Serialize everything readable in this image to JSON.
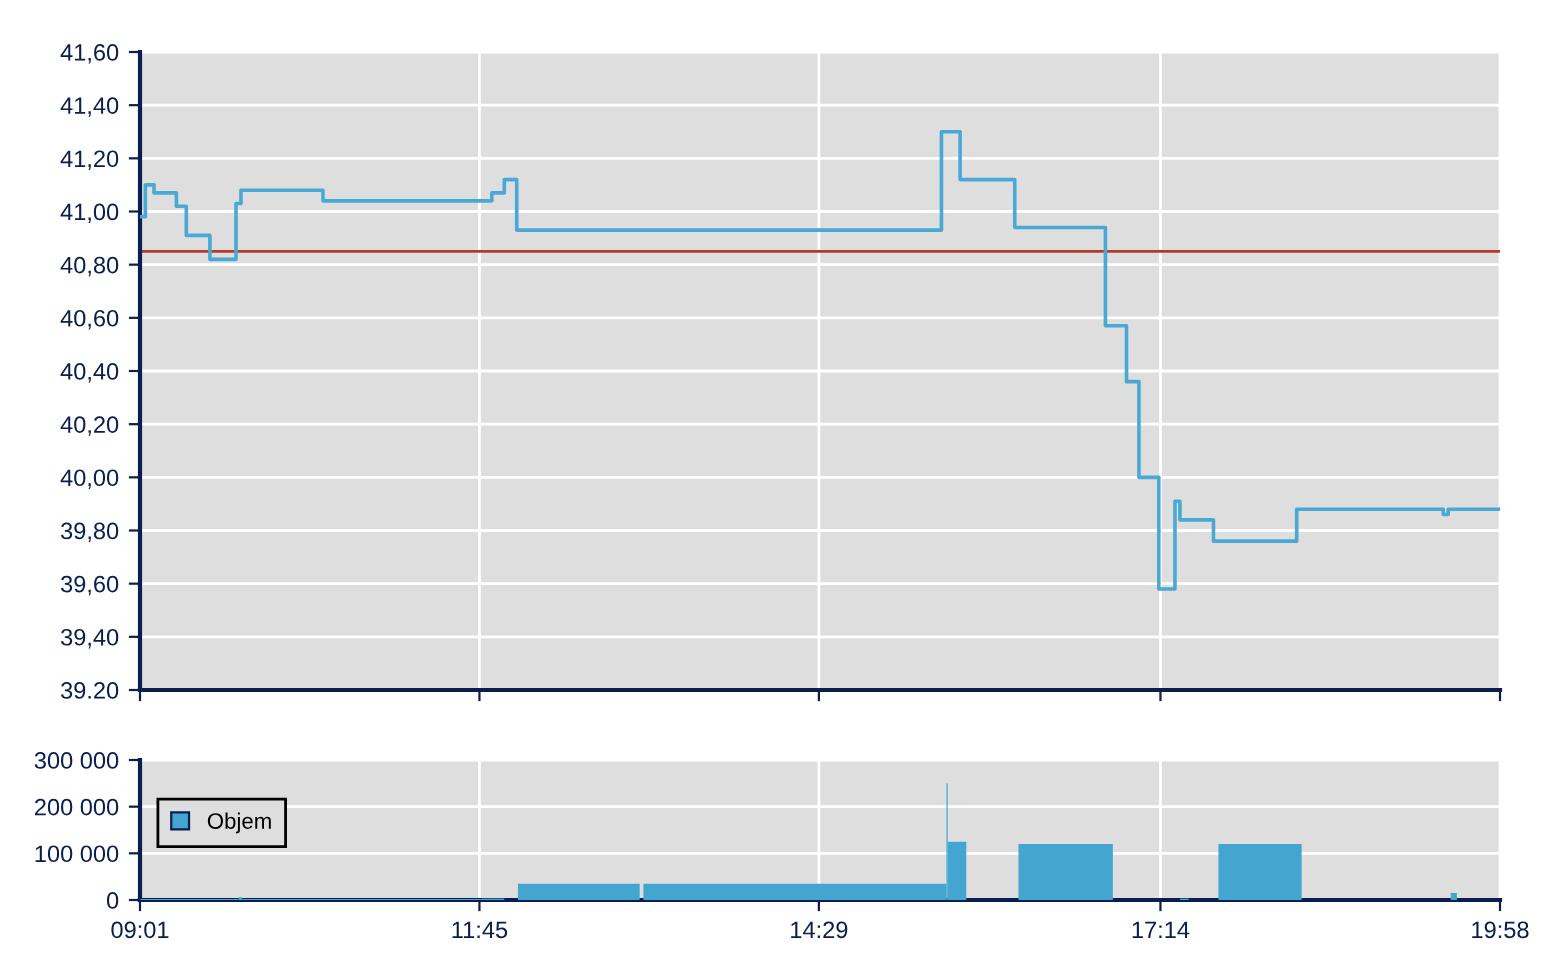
{
  "chart_data": [
    {
      "type": "step",
      "tick_labels": "y",
      "grid": true,
      "legend": false,
      "xlim": [
        9.017,
        19.967
      ],
      "xticks": [
        {
          "value": 9.017,
          "label": null
        },
        {
          "value": 11.75,
          "label": null
        },
        {
          "value": 14.483,
          "label": null
        },
        {
          "value": 17.233,
          "label": null
        },
        {
          "value": 19.967,
          "label": null
        }
      ],
      "ylim": [
        39.2,
        41.6
      ],
      "yticks": [
        {
          "value": 39.2,
          "label": "39.20"
        },
        {
          "value": 39.4,
          "label": "39,40"
        },
        {
          "value": 39.6,
          "label": "39,60"
        },
        {
          "value": 39.8,
          "label": "39,80"
        },
        {
          "value": 40.0,
          "label": "40,00"
        },
        {
          "value": 40.2,
          "label": "40,20"
        },
        {
          "value": 40.4,
          "label": "40,40"
        },
        {
          "value": 40.6,
          "label": "40,60"
        },
        {
          "value": 40.8,
          "label": "40,80"
        },
        {
          "value": 41.0,
          "label": "41,00"
        },
        {
          "value": 41.2,
          "label": "41,20"
        },
        {
          "value": 41.4,
          "label": "41,40"
        },
        {
          "value": 41.6,
          "label": "41,60"
        }
      ],
      "ref_lines": [
        {
          "axis": "y",
          "value": 40.85,
          "label": null,
          "color": "#b03a2e"
        }
      ],
      "series": [
        {
          "color": "#4aa8d4",
          "x": [
            9.03,
            9.06,
            9.13,
            9.31,
            9.39,
            9.58,
            9.79,
            9.83,
            10.49,
            11.85,
            11.95,
            12.05,
            15.47,
            15.62,
            16.06,
            16.79,
            16.96,
            17.06,
            17.22,
            17.35,
            17.39,
            17.66,
            18.33,
            19.51,
            19.55,
            19.967
          ],
          "values": [
            40.98,
            41.1,
            41.07,
            41.02,
            40.91,
            40.82,
            41.03,
            41.08,
            41.04,
            41.07,
            41.12,
            40.93,
            41.3,
            41.12,
            40.94,
            40.57,
            40.36,
            40.0,
            39.58,
            39.91,
            39.84,
            39.76,
            39.88,
            39.86,
            39.88,
            39.88
          ]
        }
      ]
    },
    {
      "type": "histogram",
      "grid": true,
      "legend": "top left",
      "xlim": [
        9.017,
        19.967
      ],
      "xticks": [
        {
          "value": 9.017,
          "label": "09:01"
        },
        {
          "value": 11.75,
          "label": "11:45"
        },
        {
          "value": 14.483,
          "label": "14:29"
        },
        {
          "value": 17.233,
          "label": "17:14"
        },
        {
          "value": 19.967,
          "label": "19:58"
        }
      ],
      "ylim": [
        0,
        300000
      ],
      "yticks": [
        {
          "value": 0,
          "label": "0"
        },
        {
          "value": 100000,
          "label": "100 000"
        },
        {
          "value": 200000,
          "label": "200 000"
        },
        {
          "value": 300000,
          "label": "300 000"
        }
      ],
      "bins": [
        9.02,
        9.81,
        9.84,
        11.77,
        11.95,
        12.06,
        13.04,
        13.07,
        15.51,
        15.52,
        15.67,
        16.09,
        16.85,
        17.39,
        17.46,
        17.7,
        18.37,
        19.57,
        19.62
      ],
      "series": [
        {
          "name": "Objem",
          "color": "#44a6d0",
          "values": [
            2000,
            6000,
            2000,
            3000,
            0,
            35000,
            0,
            35000,
            250000,
            125000,
            0,
            120000,
            0,
            3000,
            0,
            120000,
            0,
            15000
          ]
        }
      ]
    }
  ]
}
